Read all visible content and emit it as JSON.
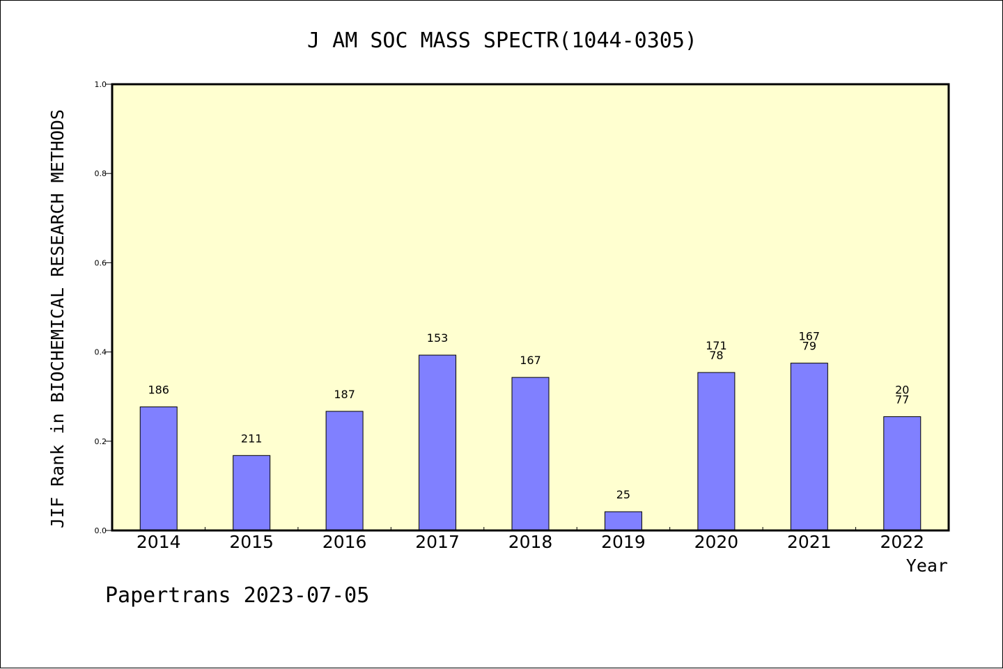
{
  "footer": "Papertrans 2023-07-05",
  "chart_data": {
    "type": "bar",
    "title": "J AM SOC MASS SPECTR(1044-0305)",
    "xlabel": "Year",
    "ylabel": "JIF Rank in BIOCHEMICAL RESEARCH METHODS",
    "ylim": [
      0,
      1.0
    ],
    "yticks": [
      "0.0",
      "0.2",
      "0.4",
      "0.6",
      "0.8",
      "1.0"
    ],
    "grid": false,
    "categories": [
      "2014",
      "2015",
      "2016",
      "2017",
      "2018",
      "2019",
      "2020",
      "2021",
      "2022"
    ],
    "values": [
      0.277,
      0.168,
      0.267,
      0.393,
      0.343,
      0.042,
      0.354,
      0.375,
      0.255
    ],
    "labels": [
      [
        "186"
      ],
      [
        "211"
      ],
      [
        "187"
      ],
      [
        "153"
      ],
      [
        "167"
      ],
      [
        "25"
      ],
      [
        "171",
        "78"
      ],
      [
        "167",
        "79"
      ],
      [
        "20",
        "77"
      ]
    ],
    "colors": {
      "plot_background": "#ffffd0",
      "bar_fill": "#8080ff",
      "axis": "#000000"
    }
  }
}
